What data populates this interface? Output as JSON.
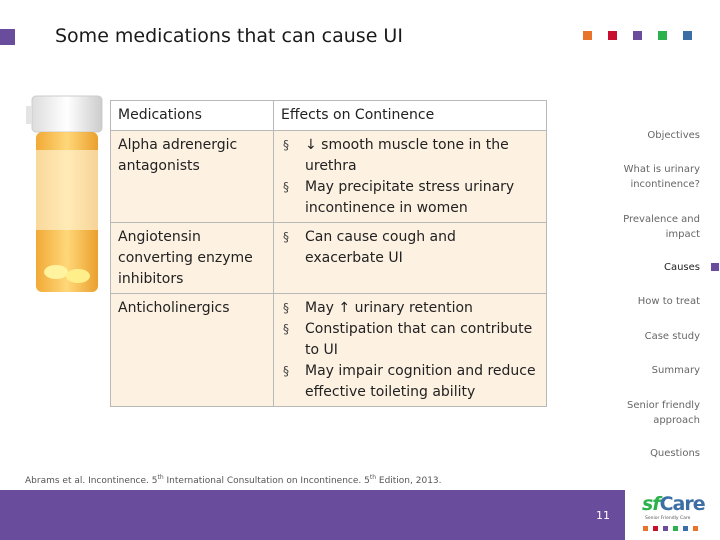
{
  "header": {
    "title": "Some medications that can cause UI"
  },
  "table": {
    "columns": [
      "Medications",
      "Effects on Continence"
    ],
    "rows": [
      {
        "medication": "Alpha adrenergic antagonists",
        "effects": [
          "↓ smooth muscle tone in the urethra",
          "May precipitate stress urinary incontinence in women"
        ]
      },
      {
        "medication": "Angiotensin converting enzyme inhibitors",
        "effects": [
          "Can cause cough and exacerbate UI"
        ]
      },
      {
        "medication": "Anticholinergics",
        "effects": [
          "May ↑ urinary retention",
          "Constipation that can contribute to UI",
          "May impair cognition and reduce effective toileting ability"
        ]
      }
    ]
  },
  "nav": {
    "items": [
      "Objectives",
      "What is urinary incontinence?",
      "Prevalence and impact",
      "Causes",
      "How to treat",
      "Case study",
      "Summary",
      "Senior friendly approach",
      "Questions"
    ],
    "active": "Causes"
  },
  "footnote": {
    "parts": [
      "Abrams et al. Incontinence. 5",
      "th",
      " International Consultation on Incontinence. 5",
      "th",
      " Edition, 2013."
    ]
  },
  "page_number": "11",
  "logo": {
    "brand_a": "sf",
    "brand_b": "Care",
    "tagline": "Senior Friendly Care"
  }
}
